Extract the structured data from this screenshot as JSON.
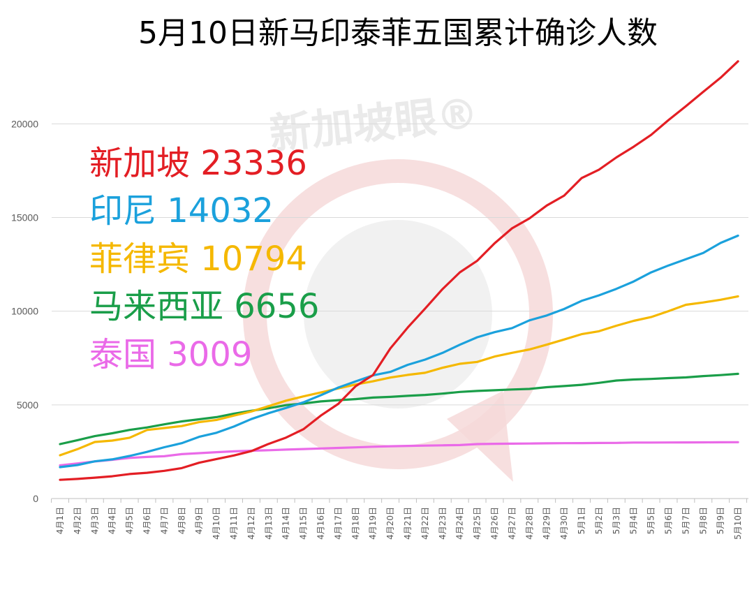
{
  "chart_data": {
    "type": "line",
    "title": "5月10日新马印泰菲五国累计确诊人数",
    "watermark": "新加坡眼®",
    "ylim": [
      0,
      24000
    ],
    "yticks": [
      0,
      5000,
      10000,
      15000,
      20000
    ],
    "grid": true,
    "legend_placement": "left, inside plot",
    "categories": [
      "4月1日",
      "4月2日",
      "4月3日",
      "4月4日",
      "4月5日",
      "4月6日",
      "4月7日",
      "4月8日",
      "4月9日",
      "4月10日",
      "4月11日",
      "4月12日",
      "4月13日",
      "4月14日",
      "4月15日",
      "4月16日",
      "4月17日",
      "4月18日",
      "4月19日",
      "4月20日",
      "4月21日",
      "4月22日",
      "4月23日",
      "4月24日",
      "4月25日",
      "4月26日",
      "4月27日",
      "4月28日",
      "4月29日",
      "4月30日",
      "5月1日",
      "5月2日",
      "5月3日",
      "5月4日",
      "5月5日",
      "5月6日",
      "5月7日",
      "5月8日",
      "5月9日",
      "5月10日"
    ],
    "series": [
      {
        "name": "新加坡",
        "final_label": "23336",
        "color": "#e31e24",
        "values": [
          1000,
          1049,
          1114,
          1189,
          1309,
          1375,
          1481,
          1623,
          1910,
          2108,
          2299,
          2532,
          2918,
          3252,
          3699,
          4427,
          5050,
          5992,
          6588,
          8014,
          9125,
          10141,
          11178,
          12075,
          12693,
          13624,
          14423,
          14951,
          15641,
          16169,
          17101,
          17548,
          18205,
          18778,
          19410,
          20198,
          20939,
          21707,
          22460,
          23336
        ]
      },
      {
        "name": "印尼",
        "final_label": "14032",
        "color": "#1ba1dc",
        "values": [
          1677,
          1790,
          1986,
          2092,
          2273,
          2491,
          2738,
          2956,
          3293,
          3512,
          3842,
          4241,
          4557,
          4839,
          5136,
          5516,
          5923,
          6248,
          6575,
          6760,
          7135,
          7418,
          7775,
          8211,
          8607,
          8882,
          9096,
          9511,
          9771,
          10118,
          10551,
          10843,
          11192,
          11587,
          12071,
          12438,
          12776,
          13112,
          13645,
          14032
        ]
      },
      {
        "name": "菲律宾",
        "final_label": "10794",
        "color": "#f5b800",
        "values": [
          2311,
          2633,
          3018,
          3094,
          3246,
          3660,
          3764,
          3870,
          4076,
          4195,
          4428,
          4648,
          4932,
          5223,
          5453,
          5660,
          5878,
          6087,
          6259,
          6459,
          6599,
          6710,
          6981,
          7192,
          7294,
          7579,
          7777,
          7958,
          8212,
          8488,
          8772,
          8928,
          9223,
          9485,
          9684,
          10004,
          10343,
          10463,
          10610,
          10794
        ]
      },
      {
        "name": "马来西亚",
        "final_label": "6656",
        "color": "#1a9e49",
        "values": [
          2908,
          3116,
          3333,
          3483,
          3662,
          3793,
          3963,
          4119,
          4228,
          4346,
          4530,
          4683,
          4817,
          4987,
          5072,
          5182,
          5251,
          5305,
          5389,
          5425,
          5482,
          5532,
          5603,
          5691,
          5742,
          5780,
          5820,
          5851,
          5945,
          6002,
          6071,
          6176,
          6298,
          6353,
          6383,
          6428,
          6467,
          6535,
          6589,
          6656
        ]
      },
      {
        "name": "泰国",
        "final_label": "3009",
        "color": "#ea6ae8",
        "values": [
          1771,
          1875,
          1978,
          2067,
          2169,
          2220,
          2258,
          2369,
          2423,
          2473,
          2518,
          2551,
          2579,
          2613,
          2643,
          2672,
          2700,
          2733,
          2765,
          2792,
          2811,
          2826,
          2839,
          2854,
          2907,
          2922,
          2931,
          2938,
          2947,
          2954,
          2960,
          2966,
          2969,
          2988,
          2989,
          2992,
          2997,
          3000,
          3004,
          3009
        ]
      }
    ]
  }
}
